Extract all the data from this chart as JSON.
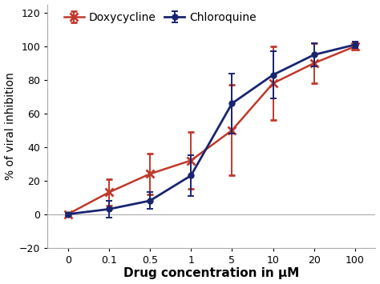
{
  "x_positions": [
    0,
    1,
    2,
    3,
    4,
    5,
    6,
    7
  ],
  "x_labels": [
    "0",
    "0.1",
    "0.5",
    "1",
    "5",
    "10",
    "20",
    "100"
  ],
  "doxy_y": [
    0,
    13,
    24,
    32,
    50,
    78,
    90,
    100
  ],
  "doxy_yerr": [
    1,
    8,
    12,
    17,
    27,
    22,
    12,
    2
  ],
  "chloro_y": [
    0,
    3,
    8,
    23,
    66,
    83,
    95,
    101
  ],
  "chloro_yerr": [
    1,
    5,
    5,
    12,
    18,
    14,
    7,
    2
  ],
  "doxy_color": "#c0392b",
  "chloro_color": "#1a2570",
  "doxy_label": "Doxycycline",
  "chloro_label": "Chloroquine",
  "ylabel": "% of viral inhibition",
  "xlabel": "Drug concentration in μM",
  "ylim": [
    -20,
    125
  ],
  "yticks": [
    -20,
    0,
    20,
    40,
    60,
    80,
    100,
    120
  ],
  "axis_fontsize": 10,
  "legend_fontsize": 10,
  "bg_color": "#ffffff",
  "spine_color": "#aaaaaa",
  "tick_color": "#555555"
}
